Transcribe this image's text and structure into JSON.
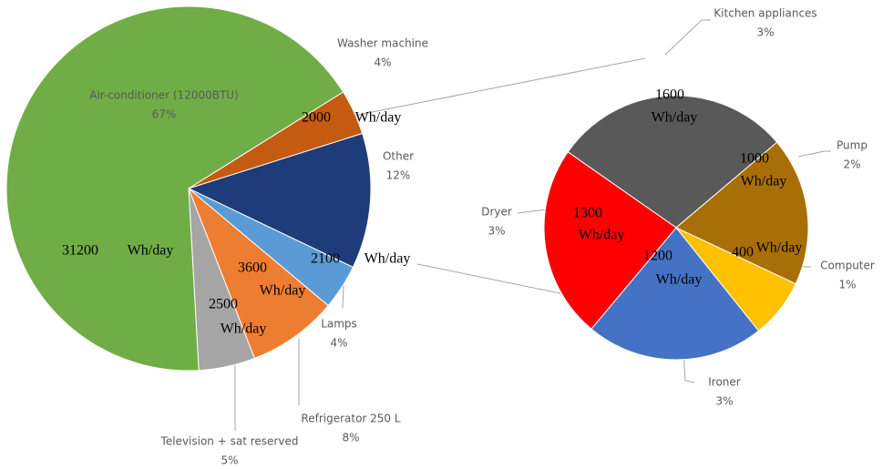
{
  "chart_data": {
    "type": "pie-of-pie",
    "energy_unit": "Wh/day",
    "pies": [
      {
        "categories": [
          "Washer machine",
          "Other",
          "Lamps",
          "Refrigerator 250 L",
          "Television + sat reserved",
          "Air-conditioner (12000BTU)"
        ],
        "values": [
          4,
          12,
          4,
          8,
          5,
          67
        ],
        "value_labels": [
          "4%",
          "12%",
          "4%",
          "8%",
          "5%",
          "67%"
        ],
        "energy": [
          2000,
          null,
          2100,
          3600,
          2500,
          31200
        ],
        "colors": [
          "#c55a11",
          "#1f3c7a",
          "#5b9bd5",
          "#ed7d31",
          "#a5a5a5",
          "#70ad47"
        ]
      },
      {
        "categories": [
          "Kitchen appliances",
          "Pump",
          "Computer",
          "Ironer",
          "Dryer"
        ],
        "values": [
          3,
          2,
          1,
          3,
          3
        ],
        "value_labels": [
          "3%",
          "2%",
          "1%",
          "3%",
          "3%"
        ],
        "energy": [
          1600,
          1000,
          400,
          1200,
          1300
        ],
        "colors": [
          "#595959",
          "#a86f08",
          "#ffc000",
          "#4472c4",
          "#ff0000"
        ]
      }
    ]
  }
}
